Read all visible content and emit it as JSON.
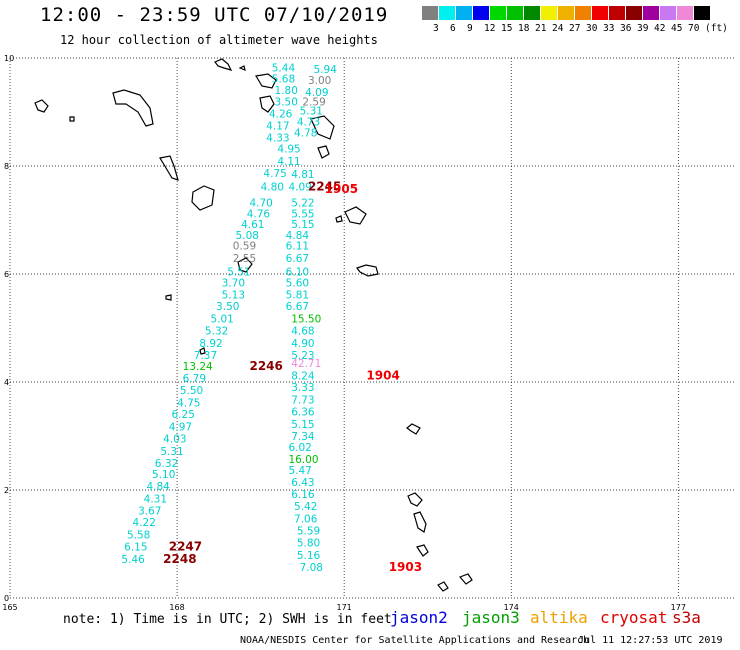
{
  "title": "12:00 - 23:59 UTC 07/10/2019",
  "subtitle": "12 hour collection of altimeter wave heights",
  "colorbar": {
    "colors": [
      "#808080",
      "#00f0f0",
      "#00b0f0",
      "#0000f0",
      "#00d800",
      "#00c000",
      "#008800",
      "#f0f000",
      "#f0b000",
      "#f08000",
      "#f00000",
      "#c00000",
      "#880000",
      "#a000a0",
      "#c878f0",
      "#f088d8",
      "#000000"
    ],
    "labels": [
      "3",
      "6",
      "9",
      "12",
      "15",
      "18",
      "21",
      "24",
      "27",
      "30",
      "33",
      "36",
      "39",
      "42",
      "45",
      "70",
      "(ft)"
    ]
  },
  "map_data": {
    "lon_range": [
      165,
      178
    ],
    "lat_range": [
      0,
      10
    ],
    "x_ticks": [
      "165",
      "168",
      "171",
      "174",
      "177"
    ],
    "y_ticks": [
      "0",
      "2",
      "4",
      "6",
      "8",
      "10"
    ],
    "observations": [
      {
        "text": "5.44",
        "lon": 169.7,
        "lat": 9.75,
        "color": "#00d0d0"
      },
      {
        "text": "5.94",
        "lon": 170.45,
        "lat": 9.72,
        "color": "#00d0d0"
      },
      {
        "text": "5.68",
        "lon": 169.7,
        "lat": 9.55,
        "color": "#00d0d0"
      },
      {
        "text": "3.00",
        "lon": 170.35,
        "lat": 9.52,
        "color": "#808080"
      },
      {
        "text": "1.80",
        "lon": 169.75,
        "lat": 9.33,
        "color": "#00d0d0"
      },
      {
        "text": "4.09",
        "lon": 170.3,
        "lat": 9.3,
        "color": "#00d0d0"
      },
      {
        "text": "3.50",
        "lon": 169.75,
        "lat": 9.12,
        "color": "#00d0d0"
      },
      {
        "text": "2.59",
        "lon": 170.25,
        "lat": 9.12,
        "color": "#808080"
      },
      {
        "text": "4.26",
        "lon": 169.65,
        "lat": 8.9,
        "color": "#00d0d0"
      },
      {
        "text": "5.31",
        "lon": 170.2,
        "lat": 8.95,
        "color": "#00d0d0"
      },
      {
        "text": "4.17",
        "lon": 169.6,
        "lat": 8.68,
        "color": "#00d0d0"
      },
      {
        "text": "4.73",
        "lon": 170.15,
        "lat": 8.75,
        "color": "#00d0d0"
      },
      {
        "text": "4.33",
        "lon": 169.6,
        "lat": 8.45,
        "color": "#00d0d0"
      },
      {
        "text": "4.78",
        "lon": 170.1,
        "lat": 8.55,
        "color": "#00d0d0"
      },
      {
        "text": "4.95",
        "lon": 169.8,
        "lat": 8.25,
        "color": "#00d0d0"
      },
      {
        "text": "4.11",
        "lon": 169.8,
        "lat": 8.02,
        "color": "#00d0d0"
      },
      {
        "text": "4.75",
        "lon": 169.55,
        "lat": 7.8,
        "color": "#00d0d0"
      },
      {
        "text": "4.81",
        "lon": 170.05,
        "lat": 7.78,
        "color": "#00d0d0"
      },
      {
        "text": "4.80",
        "lon": 169.5,
        "lat": 7.55,
        "color": "#00d0d0"
      },
      {
        "text": "4.09",
        "lon": 170.0,
        "lat": 7.55,
        "color": "#00d0d0"
      },
      {
        "text": "4.70",
        "lon": 169.3,
        "lat": 7.25,
        "color": "#00d0d0"
      },
      {
        "text": "5.22",
        "lon": 170.05,
        "lat": 7.25,
        "color": "#00d0d0"
      },
      {
        "text": "4.76",
        "lon": 169.25,
        "lat": 7.05,
        "color": "#00d0d0"
      },
      {
        "text": "5.55",
        "lon": 170.05,
        "lat": 7.05,
        "color": "#00d0d0"
      },
      {
        "text": "4.61",
        "lon": 169.15,
        "lat": 6.85,
        "color": "#00d0d0"
      },
      {
        "text": "5.15",
        "lon": 170.05,
        "lat": 6.85,
        "color": "#00d0d0"
      },
      {
        "text": "5.08",
        "lon": 169.05,
        "lat": 6.65,
        "color": "#00d0d0"
      },
      {
        "text": "4.84",
        "lon": 169.95,
        "lat": 6.65,
        "color": "#00d0d0"
      },
      {
        "text": "0.59",
        "lon": 169.0,
        "lat": 6.45,
        "color": "#808080"
      },
      {
        "text": "6.11",
        "lon": 169.95,
        "lat": 6.45,
        "color": "#00d0d0"
      },
      {
        "text": "2.55",
        "lon": 169.0,
        "lat": 6.22,
        "color": "#808080"
      },
      {
        "text": "6.67",
        "lon": 169.95,
        "lat": 6.22,
        "color": "#00d0d0"
      },
      {
        "text": "5.51",
        "lon": 168.9,
        "lat": 5.97,
        "color": "#00d0d0"
      },
      {
        "text": "6.10",
        "lon": 169.95,
        "lat": 5.97,
        "color": "#00d0d0"
      },
      {
        "text": "3.70",
        "lon": 168.8,
        "lat": 5.77,
        "color": "#00d0d0"
      },
      {
        "text": "5.60",
        "lon": 169.95,
        "lat": 5.77,
        "color": "#00d0d0"
      },
      {
        "text": "5.13",
        "lon": 168.8,
        "lat": 5.55,
        "color": "#00d0d0"
      },
      {
        "text": "5.81",
        "lon": 169.95,
        "lat": 5.55,
        "color": "#00d0d0"
      },
      {
        "text": "3.50",
        "lon": 168.7,
        "lat": 5.33,
        "color": "#00d0d0"
      },
      {
        "text": "6.67",
        "lon": 169.95,
        "lat": 5.33,
        "color": "#00d0d0"
      },
      {
        "text": "5.01",
        "lon": 168.6,
        "lat": 5.1,
        "color": "#00d0d0"
      },
      {
        "text": "15.50",
        "lon": 170.05,
        "lat": 5.1,
        "color": "#00c000"
      },
      {
        "text": "5.32",
        "lon": 168.5,
        "lat": 4.88,
        "color": "#00d0d0"
      },
      {
        "text": "4.68",
        "lon": 170.05,
        "lat": 4.88,
        "color": "#00d0d0"
      },
      {
        "text": "8.92",
        "lon": 168.4,
        "lat": 4.65,
        "color": "#00d0d0"
      },
      {
        "text": "4.90",
        "lon": 170.05,
        "lat": 4.65,
        "color": "#00d0d0"
      },
      {
        "text": "7.37",
        "lon": 168.3,
        "lat": 4.43,
        "color": "#00d0d0"
      },
      {
        "text": "5.23",
        "lon": 170.05,
        "lat": 4.43,
        "color": "#00d0d0"
      },
      {
        "text": "13.24",
        "lon": 168.1,
        "lat": 4.22,
        "color": "#00c000"
      },
      {
        "text": "2246",
        "lon": 169.3,
        "lat": 4.22,
        "color": "#880000",
        "bold": true
      },
      {
        "text": "42.71",
        "lon": 170.05,
        "lat": 4.28,
        "color": "#f088d8"
      },
      {
        "text": "6.79",
        "lon": 168.1,
        "lat": 4.0,
        "color": "#00d0d0"
      },
      {
        "text": "8.24",
        "lon": 170.05,
        "lat": 4.05,
        "color": "#00d0d0"
      },
      {
        "text": "1904",
        "lon": 171.4,
        "lat": 4.05,
        "color": "#f00000",
        "bold": true
      },
      {
        "text": "5.50",
        "lon": 168.05,
        "lat": 3.78,
        "color": "#00d0d0"
      },
      {
        "text": "3.33",
        "lon": 170.05,
        "lat": 3.83,
        "color": "#00d0d0"
      },
      {
        "text": "4.75",
        "lon": 168.0,
        "lat": 3.55,
        "color": "#00d0d0"
      },
      {
        "text": "7.73",
        "lon": 170.05,
        "lat": 3.6,
        "color": "#00d0d0"
      },
      {
        "text": "6.25",
        "lon": 167.9,
        "lat": 3.33,
        "color": "#00d0d0"
      },
      {
        "text": "6.36",
        "lon": 170.05,
        "lat": 3.38,
        "color": "#00d0d0"
      },
      {
        "text": "4.97",
        "lon": 167.85,
        "lat": 3.1,
        "color": "#00d0d0"
      },
      {
        "text": "5.15",
        "lon": 170.05,
        "lat": 3.15,
        "color": "#00d0d0"
      },
      {
        "text": "4.03",
        "lon": 167.75,
        "lat": 2.88,
        "color": "#00d0d0"
      },
      {
        "text": "7.34",
        "lon": 170.05,
        "lat": 2.93,
        "color": "#00d0d0"
      },
      {
        "text": "5.31",
        "lon": 167.7,
        "lat": 2.65,
        "color": "#00d0d0"
      },
      {
        "text": "6.02",
        "lon": 170.0,
        "lat": 2.72,
        "color": "#00d0d0"
      },
      {
        "text": "6.32",
        "lon": 167.6,
        "lat": 2.43,
        "color": "#00d0d0"
      },
      {
        "text": "16.00",
        "lon": 170.0,
        "lat": 2.5,
        "color": "#00c000"
      },
      {
        "text": "5.10",
        "lon": 167.55,
        "lat": 2.22,
        "color": "#00d0d0"
      },
      {
        "text": "5.47",
        "lon": 170.0,
        "lat": 2.3,
        "color": "#00d0d0"
      },
      {
        "text": "4.84",
        "lon": 167.45,
        "lat": 2.0,
        "color": "#00d0d0"
      },
      {
        "text": "6.43",
        "lon": 170.05,
        "lat": 2.07,
        "color": "#00d0d0"
      },
      {
        "text": "4.31",
        "lon": 167.4,
        "lat": 1.77,
        "color": "#00d0d0"
      },
      {
        "text": "6.16",
        "lon": 170.05,
        "lat": 1.85,
        "color": "#00d0d0"
      },
      {
        "text": "3.67",
        "lon": 167.3,
        "lat": 1.55,
        "color": "#00d0d0"
      },
      {
        "text": "5.42",
        "lon": 170.1,
        "lat": 1.63,
        "color": "#00d0d0"
      },
      {
        "text": "4.22",
        "lon": 167.2,
        "lat": 1.33,
        "color": "#00d0d0"
      },
      {
        "text": "7.06",
        "lon": 170.1,
        "lat": 1.4,
        "color": "#00d0d0"
      },
      {
        "text": "5.58",
        "lon": 167.1,
        "lat": 1.1,
        "color": "#00d0d0"
      },
      {
        "text": "5.59",
        "lon": 170.15,
        "lat": 1.18,
        "color": "#00d0d0"
      },
      {
        "text": "6.15",
        "lon": 167.05,
        "lat": 0.88,
        "color": "#00d0d0"
      },
      {
        "text": "2247",
        "lon": 167.85,
        "lat": 0.88,
        "color": "#880000",
        "bold": true
      },
      {
        "text": "5.80",
        "lon": 170.15,
        "lat": 0.95,
        "color": "#00d0d0"
      },
      {
        "text": "5.16",
        "lon": 170.15,
        "lat": 0.72,
        "color": "#00d0d0"
      },
      {
        "text": "5.46",
        "lon": 167.0,
        "lat": 0.65,
        "color": "#00d0d0"
      },
      {
        "text": "2248",
        "lon": 167.75,
        "lat": 0.65,
        "color": "#880000",
        "bold": true
      },
      {
        "text": "7.08",
        "lon": 170.2,
        "lat": 0.5,
        "color": "#00d0d0"
      },
      {
        "text": "1903",
        "lon": 171.8,
        "lat": 0.5,
        "color": "#f00000",
        "bold": true
      },
      {
        "text": "2245",
        "lon": 170.35,
        "lat": 7.55,
        "color": "#880000",
        "bold": true
      },
      {
        "text": "1905",
        "lon": 170.65,
        "lat": 7.5,
        "color": "#f00000",
        "bold": true
      }
    ]
  },
  "note": "note: 1) Time is in UTC; 2) SWH is in feet",
  "satellites": [
    {
      "name": "jason2",
      "color": "#0000e0"
    },
    {
      "name": "jason3",
      "color": "#00a000"
    },
    {
      "name": "altika",
      "color": "#f0a000"
    },
    {
      "name": "cryosat",
      "color": "#e00000"
    },
    {
      "name": "s3a",
      "color": "#c00000"
    }
  ],
  "credit": "NOAA/NESDIS Center for Satellite Applications and Research",
  "timestamp": "Jul 11 12:27:53 UTC 2019"
}
